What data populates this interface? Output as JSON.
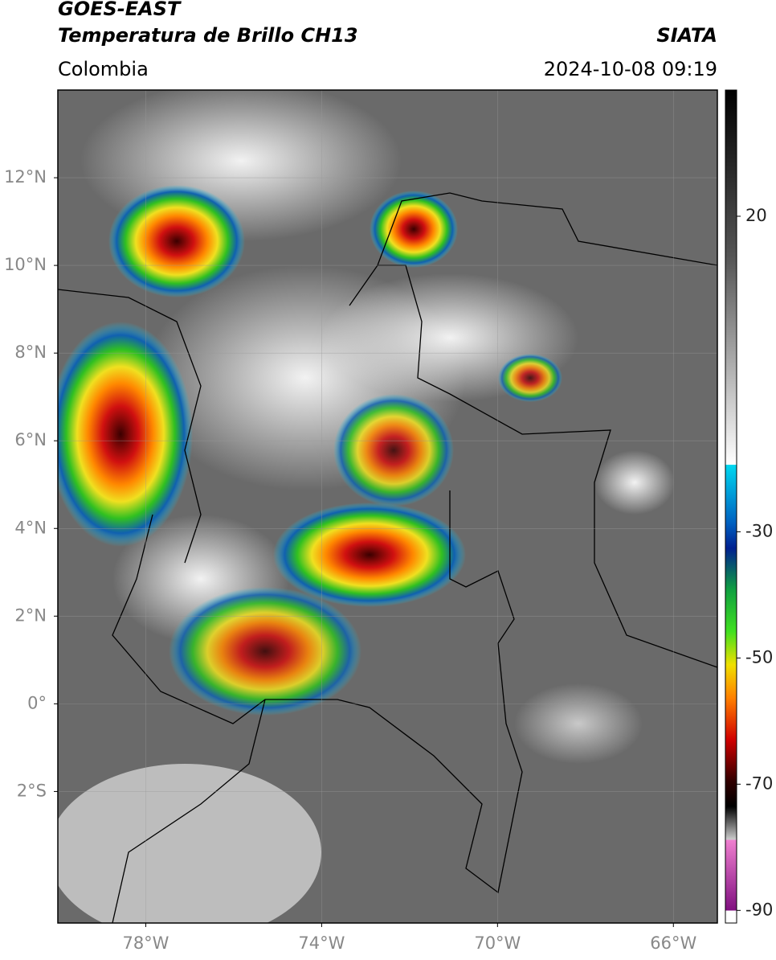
{
  "header": {
    "title": "GOES-EAST",
    "subtitle": "Temperatura de Brillo CH13",
    "region": "Colombia",
    "source": "SIATA",
    "datetime": "2024-10-08 09:19"
  },
  "map": {
    "xlim": [
      -80,
      -65
    ],
    "ylim": [
      -5,
      14
    ],
    "lat_ticks": [
      {
        "value": 12,
        "label": "12°N"
      },
      {
        "value": 10,
        "label": "10°N"
      },
      {
        "value": 8,
        "label": "8°N"
      },
      {
        "value": 6,
        "label": "6°N"
      },
      {
        "value": 4,
        "label": "4°N"
      },
      {
        "value": 2,
        "label": "2°N"
      },
      {
        "value": 0,
        "label": "0°"
      },
      {
        "value": -2,
        "label": "2°S"
      }
    ],
    "lon_ticks": [
      {
        "value": -78,
        "label": "78°W"
      },
      {
        "value": -74,
        "label": "74°W"
      },
      {
        "value": -70,
        "label": "70°W"
      },
      {
        "value": -66,
        "label": "66°W"
      }
    ],
    "grid": true
  },
  "colorbar": {
    "lim": [
      -92,
      40
    ],
    "ticks": [
      20,
      -30,
      -50,
      -70,
      -90
    ]
  }
}
